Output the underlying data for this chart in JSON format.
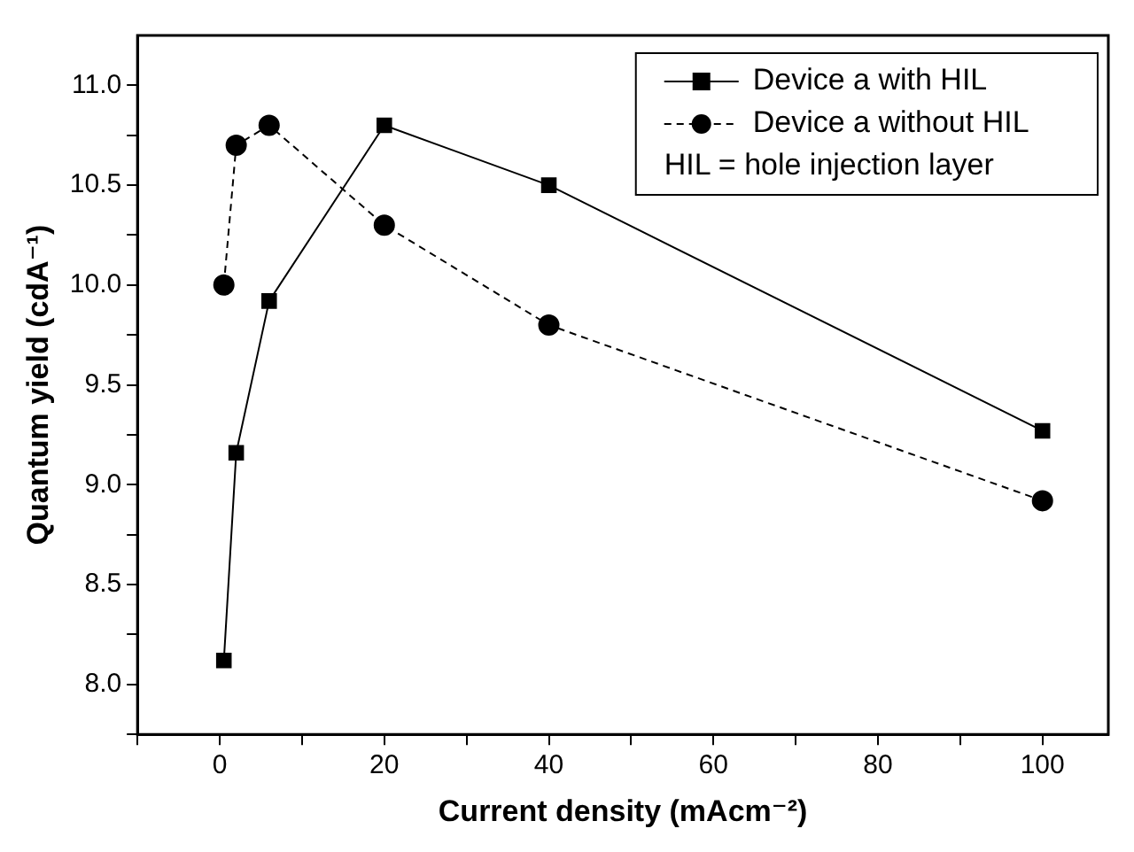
{
  "chart_data": {
    "type": "line",
    "xlabel": "Current density (mAcm⁻²)",
    "ylabel": "Quantum yield (cdA⁻¹)",
    "xlim": [
      -10,
      108
    ],
    "ylim": [
      7.75,
      11.25
    ],
    "xticks": [
      {
        "value": -10,
        "label": null
      },
      0,
      {
        "value": 10,
        "label": null
      },
      20,
      {
        "value": 30,
        "label": null
      },
      40,
      {
        "value": 50,
        "label": null
      },
      60,
      {
        "value": 70,
        "label": null
      },
      80,
      {
        "value": 90,
        "label": null
      },
      100
    ],
    "yticks": [
      {
        "value": 7.75,
        "label": null
      },
      {
        "value": 8,
        "label": "8.0"
      },
      {
        "value": 8.25,
        "label": null
      },
      {
        "value": 8.5,
        "label": "8.5"
      },
      {
        "value": 8.75,
        "label": null
      },
      {
        "value": 9,
        "label": "9.0"
      },
      {
        "value": 9.25,
        "label": null
      },
      {
        "value": 9.5,
        "label": "9.5"
      },
      {
        "value": 9.75,
        "label": null
      },
      {
        "value": 10,
        "label": "10.0"
      },
      {
        "value": 10.25,
        "label": null
      },
      {
        "value": 10.5,
        "label": "10.5"
      },
      {
        "value": 10.75,
        "label": null
      },
      {
        "value": 11,
        "label": "11.0"
      }
    ],
    "series": [
      {
        "name": "Device a with HIL",
        "color": "#000000",
        "marker": "square",
        "line_style": "solid",
        "x": [
          0.5,
          2,
          6,
          20,
          40,
          100
        ],
        "values": [
          8.12,
          9.16,
          9.92,
          10.8,
          10.5,
          9.27
        ]
      },
      {
        "name": "Device a without HIL",
        "color": "#000000",
        "marker": "circle",
        "line_style": "dashed",
        "x": [
          0.5,
          2,
          6,
          20,
          40,
          100
        ],
        "values": [
          10.0,
          10.7,
          10.8,
          10.3,
          9.8,
          8.92
        ]
      }
    ],
    "annotations": [
      "HIL = hole injection layer"
    ],
    "legend": "top right",
    "grid": false
  }
}
